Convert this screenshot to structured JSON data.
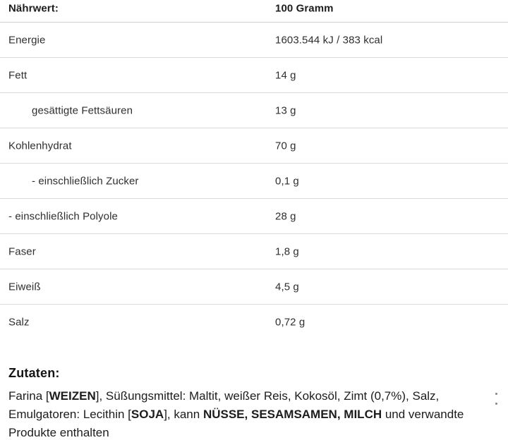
{
  "table": {
    "header": {
      "label": "Nährwert:",
      "value": "100 Gramm"
    },
    "rows": [
      {
        "label": "Energie",
        "value": "1603.544 kJ / 383 kcal",
        "indent": false
      },
      {
        "label": "Fett",
        "value": "14 g",
        "indent": false
      },
      {
        "label": "gesättigte Fettsäuren",
        "value": "13 g",
        "indent": true
      },
      {
        "label": "Kohlenhydrat",
        "value": "70 g",
        "indent": false
      },
      {
        "label": "- einschließlich Zucker",
        "value": "0,1 g",
        "indent": true
      },
      {
        "label": "- einschließlich Polyole",
        "value": "28 g",
        "indent": false
      },
      {
        "label": "Faser",
        "value": "1,8 g",
        "indent": false
      },
      {
        "label": "Eiweiß",
        "value": "4,5 g",
        "indent": false
      },
      {
        "label": "Salz",
        "value": "0,72 g",
        "indent": false
      }
    ]
  },
  "ingredients": {
    "heading": "Zutaten:",
    "lines": [
      [
        {
          "t": "Farina [",
          "b": false
        },
        {
          "t": "WEIZEN",
          "b": true
        },
        {
          "t": "], Süßungsmittel: Maltit, weißer Reis, Kokosöl, Zimt (0,7%), Salz,",
          "b": false
        }
      ],
      [
        {
          "t": "Emulgatoren: Lecithin [",
          "b": false
        },
        {
          "t": "SOJA",
          "b": true
        },
        {
          "t": "], kann ",
          "b": false
        },
        {
          "t": "NÜSSE,",
          "b": true
        },
        {
          "t": " ",
          "b": false
        },
        {
          "t": "SESAMSAMEN,",
          "b": true
        },
        {
          "t": " ",
          "b": false
        },
        {
          "t": "MILCH",
          "b": true
        },
        {
          "t": " und verwandte",
          "b": false
        }
      ],
      [
        {
          "t": "Produkte enthalten",
          "b": false
        }
      ]
    ]
  },
  "decor": {
    "right_edge_icon": "vertical-dots-icon"
  },
  "colors": {
    "divider": "#dadada",
    "table_text": "#2f2f2f",
    "ingredients_text": "#1c1c1c",
    "background": "#ffffff"
  }
}
